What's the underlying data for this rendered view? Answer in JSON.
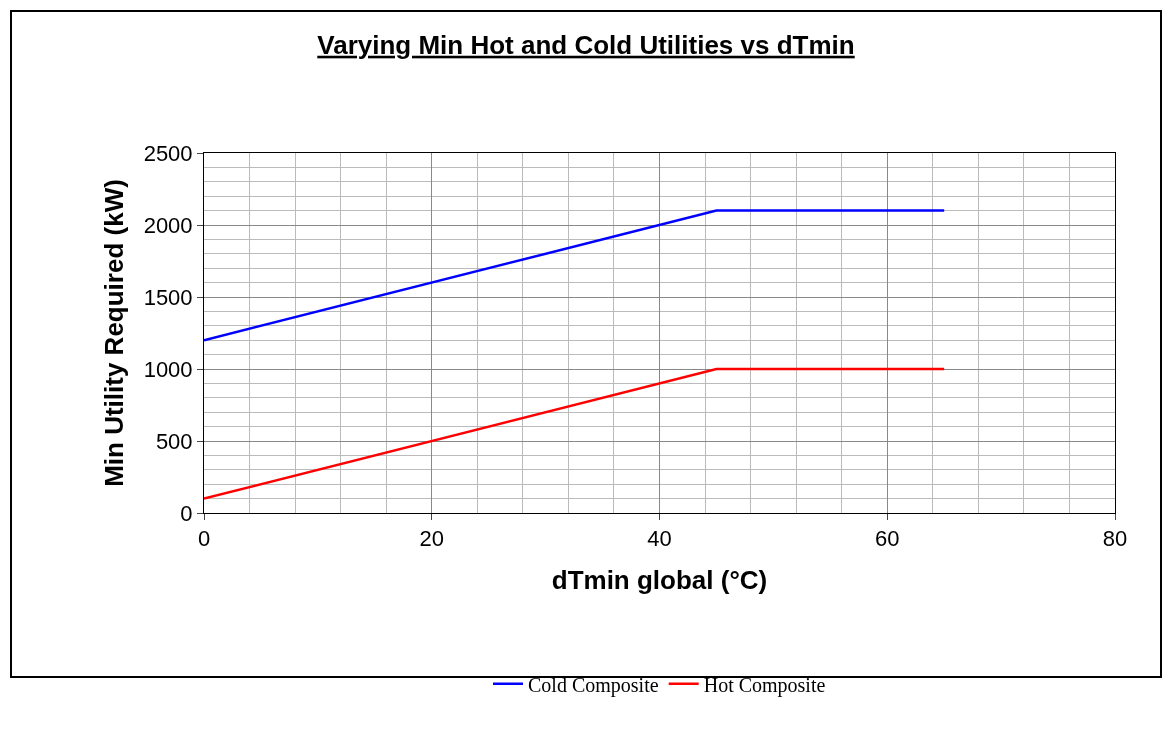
{
  "chart_data": {
    "type": "line",
    "title": "Varying Min Hot and Cold Utilities vs dTmin",
    "xlabel": "dTmin global (°C)",
    "ylabel": "Min Utility Required (kW)",
    "x": [
      0,
      45,
      65
    ],
    "series": [
      {
        "name": "Cold Composite",
        "color": "#0000ff",
        "values": [
          1200,
          2100,
          2100
        ]
      },
      {
        "name": "Hot Composite",
        "color": "#ff0000",
        "values": [
          100,
          1000,
          1000
        ]
      }
    ],
    "xlim": [
      0,
      80
    ],
    "xticks": [
      0,
      20,
      40,
      60,
      80
    ],
    "ylim": [
      0,
      2500
    ],
    "yticks": [
      0,
      500,
      1000,
      1500,
      2000,
      2500
    ],
    "grid": true,
    "legend": "bottom",
    "marker": "none",
    "line_style": "solid"
  }
}
